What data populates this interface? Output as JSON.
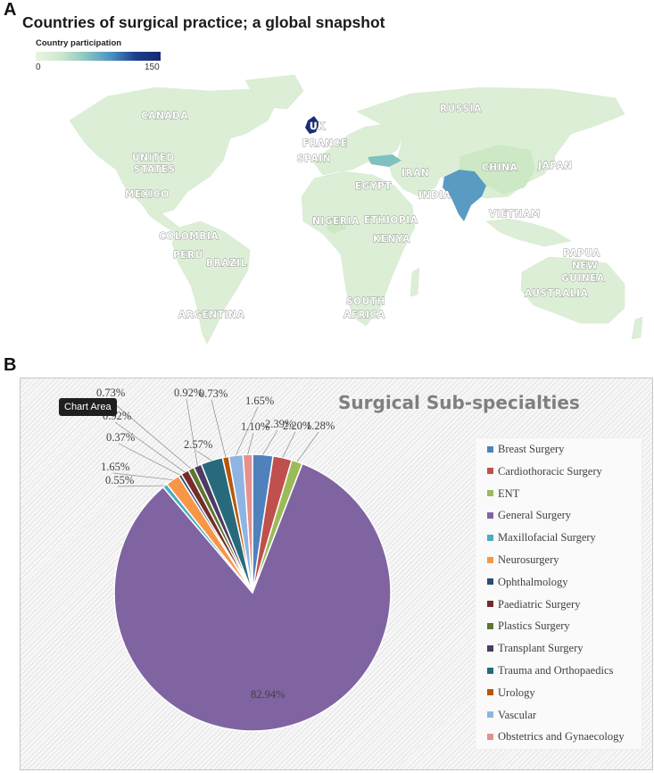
{
  "panel_a": {
    "letter": "A",
    "title": "Countries of surgical practice; a global snapshot",
    "legend": {
      "title": "Country participation",
      "min_label": "0",
      "max_label": "150",
      "colors": [
        "#eaf4df",
        "#8cc6c0",
        "#16286f"
      ]
    },
    "country_labels": [
      "CANADA",
      "UNITED STATES",
      "MEXICO",
      "COLOMBIA",
      "PERU",
      "BRAZIL",
      "ARGENTINA",
      "UK",
      "FRANCE",
      "SPAIN",
      "RUSSIA",
      "IRAN",
      "EGYPT",
      "NIGERIA",
      "ETHIOPIA",
      "KENYA",
      "SOUTH AFRICA",
      "INDIA",
      "CHINA",
      "JAPAN",
      "VIETNAM",
      "PAPUA NEW GUINEA",
      "AUSTRALIA"
    ],
    "highlight_colors": {
      "uk": "#1c2b78",
      "india": "#5a9bc4",
      "turkey": "#7fc1be",
      "default": "#dcefd6"
    }
  },
  "panel_b": {
    "letter": "B",
    "tooltip": "Chart Area"
  },
  "chart_data": {
    "type": "pie",
    "title": "Surgical Sub-specialties",
    "legend_position": "right",
    "slices": [
      {
        "name": "Breast Surgery",
        "value": 2.39,
        "label": "2.39%",
        "color": "#4f81bd"
      },
      {
        "name": "Cardiothoracic Surgery",
        "value": 2.2,
        "label": "2.20%",
        "color": "#c0504d"
      },
      {
        "name": "ENT",
        "value": 1.28,
        "label": "1.28%",
        "color": "#9bbb59"
      },
      {
        "name": "General Surgery",
        "value": 82.94,
        "label": "82.94%",
        "color": "#8064a2"
      },
      {
        "name": "Maxillofacial Surgery",
        "value": 0.55,
        "label": "0.55%",
        "color": "#4bacc6"
      },
      {
        "name": "Neurosurgery",
        "value": 1.65,
        "label": "1.65%",
        "color": "#f79646"
      },
      {
        "name": "Ophthalmology",
        "value": 0.37,
        "label": "0.37%",
        "color": "#2c4d75"
      },
      {
        "name": "Paediatric Surgery",
        "value": 0.92,
        "label": "0.92%",
        "color": "#772c2a"
      },
      {
        "name": "Plastics Surgery",
        "value": 0.73,
        "label": "0.73%",
        "color": "#5f7530"
      },
      {
        "name": "Transplant Surgery",
        "value": 0.92,
        "label": "0.92%",
        "color": "#4d3b62"
      },
      {
        "name": "Trauma and Orthopaedics",
        "value": 2.57,
        "label": "2.57%",
        "color": "#276a7c"
      },
      {
        "name": "Urology",
        "value": 0.73,
        "label": "0.73%",
        "color": "#b65708"
      },
      {
        "name": "Vascular",
        "value": 1.65,
        "label": "1.65%",
        "color": "#8eb4e3"
      },
      {
        "name": "Obstetrics and Gynaecology",
        "value": 1.1,
        "label": "1.10%",
        "color": "#e6908c"
      }
    ]
  }
}
